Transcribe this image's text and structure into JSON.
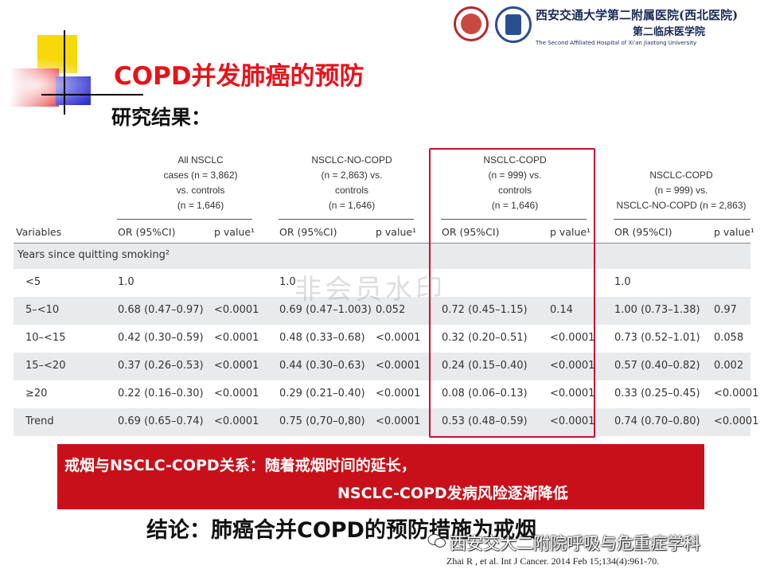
{
  "header": {
    "hospital_line1": "西安交通大学第二附属医院(西北医院)",
    "hospital_line2": "第二临床医学院",
    "hospital_line3": "The Second Affiliated Hospital of Xi'an Jiaotong University"
  },
  "title": "COPD并发肺癌的预防",
  "subtitle": "研究结果：",
  "table": {
    "group_headers": [
      [
        "All NSCLC",
        "cases (n = 3,862)",
        "vs. controls",
        "(n = 1,646)"
      ],
      [
        "NSCLC-NO-COPD",
        "(n = 2,863) vs.",
        "controls",
        "(n = 1,646)"
      ],
      [
        "NSCLC-COPD",
        "(n = 999) vs.",
        "controls",
        "(n = 1,646)"
      ],
      [
        "NSCLC-COPD",
        "(n = 999) vs.",
        "NSCLC-NO-COPD (n = 2,863)"
      ]
    ],
    "col_variables": "Variables",
    "col_or": "OR (95%CI)",
    "col_p": "p value¹",
    "section_label": "Years since quitting smoking²",
    "rows": [
      {
        "label": "<5",
        "c": [
          "1.0",
          "",
          "1.0",
          "",
          "",
          "",
          "1.0",
          ""
        ]
      },
      {
        "label": "5–<10",
        "c": [
          "0.68 (0.47–0.97)",
          "<0.0001",
          "0.69 (0.47–1.003)",
          "0.052",
          "0.72 (0.45–1.15)",
          "0.14",
          "1.00 (0.73–1.38)",
          "0.97"
        ]
      },
      {
        "label": "10–<15",
        "c": [
          "0.42 (0.30–0.59)",
          "<0.0001",
          "0.48 (0.33–0.68)",
          "<0.0001",
          "0.32 (0.20–0.51)",
          "<0.0001",
          "0.73 (0.52–1.01)",
          "0.058"
        ]
      },
      {
        "label": "15–<20",
        "c": [
          "0.37 (0.26–0.53)",
          "<0.0001",
          "0.44 (0.30–0.63)",
          "<0.0001",
          "0.24 (0.15–0.40)",
          "<0.0001",
          "0.57 (0.40–0.82)",
          "0.002"
        ]
      },
      {
        "label": "≥20",
        "c": [
          "0.22 (0.16–0.30)",
          "<0.0001",
          "0.29 (0.21–0.40)",
          "<0.0001",
          "0.08 (0.06–0.13)",
          "<0.0001",
          "0.33 (0.25–0.45)",
          "<0.0001"
        ]
      },
      {
        "label": "Trend",
        "c": [
          "0.69 (0.65–0.74)",
          "<0.0001",
          "0.75 (0,70–0,80)",
          "<0.0001",
          "0.53 (0.48–0.59)",
          "<0.0001",
          "0.74 (0.70–0.80)",
          "<0.0001"
        ]
      }
    ]
  },
  "watermark": "非会员水印",
  "banner": {
    "line1": "戒烟与NSCLC-COPD关系：随着戒烟时间的延长，",
    "line2": "NSCLC-COPD发病风险逐渐降低"
  },
  "conclusion": "结论：肺癌合并COPD的预防措施为戒烟",
  "wechat_label": "西安交大二附院呼吸与危重症学科",
  "citation": "Zhai R , et al. Int J Cancer. 2014 Feb 15;134(4):961-70.",
  "colors": {
    "title": "#e8121b",
    "banner": "#c8101a",
    "highlight_box": "#c8102e"
  }
}
